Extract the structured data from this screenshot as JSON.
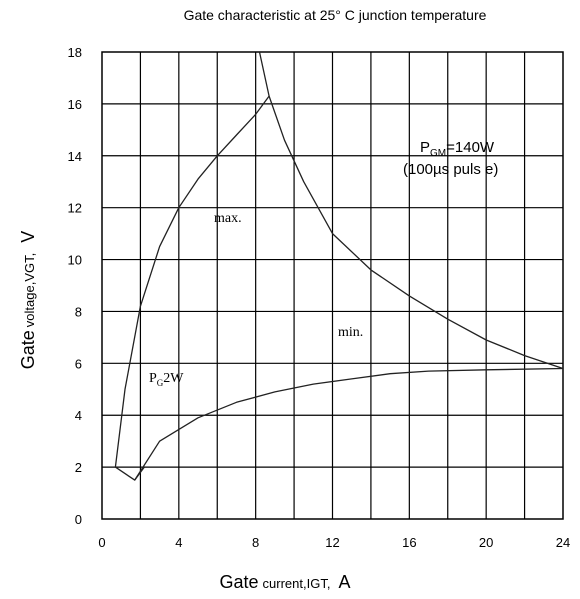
{
  "chart_data": {
    "type": "line",
    "title": "Gate characteristic at 25° C junction temperature",
    "xlabel": {
      "main": "Gate",
      "sub": "current,IGT,",
      "unit": "A"
    },
    "ylabel": {
      "main": "Gate",
      "sub": "voltage,VGT,",
      "unit": "V"
    },
    "xlim": [
      0,
      24
    ],
    "ylim": [
      0,
      18
    ],
    "xticks": [
      "0",
      "4",
      "8",
      "12",
      "16",
      "20",
      "24"
    ],
    "yticks": [
      "0",
      "2",
      "4",
      "6",
      "8",
      "10",
      "12",
      "14",
      "16",
      "18"
    ],
    "grid": true,
    "series": [
      {
        "name": "max.",
        "x": [
          0.7,
          1.2,
          2.0,
          3.0,
          4.0,
          5.0,
          6.0,
          7.0,
          8.0,
          8.7
        ],
        "y": [
          2.0,
          5.0,
          8.2,
          10.5,
          12.0,
          13.1,
          14.0,
          14.8,
          15.6,
          16.3
        ]
      },
      {
        "name": "min.",
        "x": [
          1.7,
          3.0,
          5.0,
          7.0,
          9.0,
          11.0,
          13.0,
          15.0,
          17.0,
          20.0,
          24.0
        ],
        "y": [
          1.5,
          3.0,
          3.9,
          4.5,
          4.9,
          5.2,
          5.4,
          5.6,
          5.7,
          5.75,
          5.8
        ]
      },
      {
        "name": "PGM=140W (100µs pulse)",
        "x": [
          8.2,
          8.7,
          9.5,
          10.5,
          12.0,
          14.0,
          16.0,
          18.0,
          20.0,
          22.0,
          24.0
        ],
        "y": [
          18.0,
          16.3,
          14.6,
          13.0,
          11.0,
          9.6,
          8.6,
          7.7,
          6.9,
          6.3,
          5.8
        ]
      },
      {
        "name": "PG2W",
        "x": [
          0.7,
          1.7,
          2.2
        ],
        "y": [
          2.0,
          1.5,
          2.0
        ]
      }
    ],
    "annotations": {
      "max_label": "max.",
      "min_label": "min.",
      "pgm_line1_main": "P",
      "pgm_line1_sub": "GM",
      "pgm_line1_rest": "=140W",
      "pgm_line2": "(100µs  puls e)",
      "pg_main": "P",
      "pg_sub": "G",
      "pg_rest": "2W"
    }
  }
}
